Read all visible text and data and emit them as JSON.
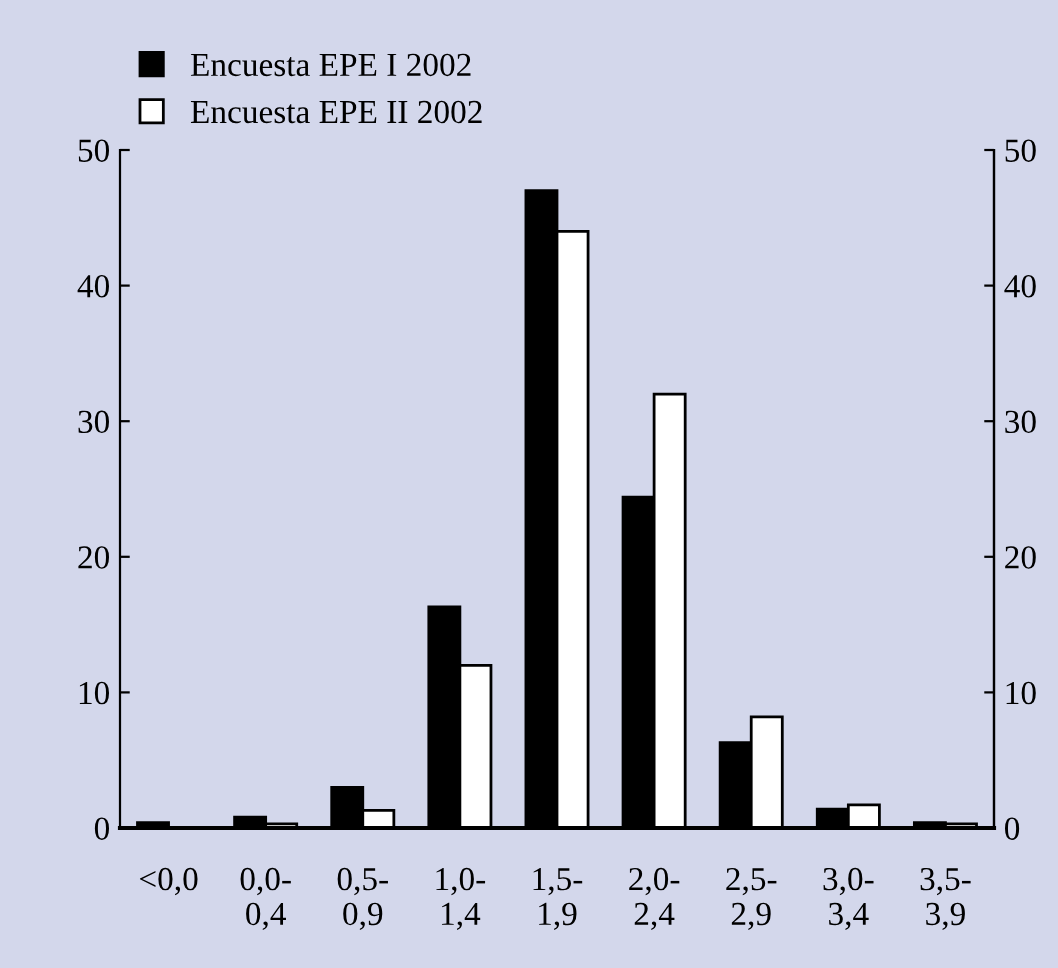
{
  "chart_data": {
    "type": "bar",
    "categories": [
      "<0,0",
      "0,0-\n0,4",
      "0,5-\n0,9",
      "1,0-\n1,4",
      "1,5-\n1,9",
      "2,0-\n2,4",
      "2,5-\n2,9",
      "3,0-\n3,4",
      "3,5-\n3,9"
    ],
    "series": [
      {
        "name": "Encuesta EPE I 2002",
        "color": "#000000",
        "values": [
          0.4,
          0.8,
          3.0,
          16.3,
          47,
          24.4,
          6.3,
          1.4,
          0.4
        ]
      },
      {
        "name": "Encuesta EPE II 2002",
        "color": "#ffffff",
        "values": [
          null,
          0.3,
          1.3,
          12,
          44,
          32,
          8.2,
          1.7,
          0.3
        ]
      }
    ],
    "ylim": [
      0,
      50
    ],
    "yticks": [
      0,
      10,
      20,
      30,
      40,
      50
    ],
    "y2lim": [
      0,
      50
    ],
    "y2ticks": [
      0,
      10,
      20,
      30,
      40,
      50
    ],
    "grid": false,
    "legend": "top left"
  }
}
